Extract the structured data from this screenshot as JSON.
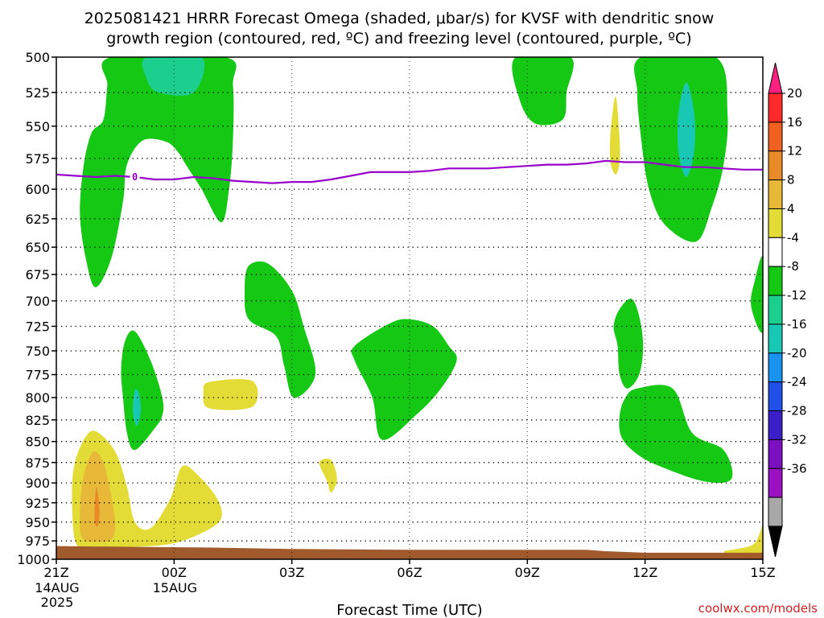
{
  "title_line1": "2025081421 HRRR Forecast Omega (shaded, μbar/s) for KVSF with dendritic snow",
  "title_line2": "growth region (contoured, red, ºC) and freezing level (contoured, purple, ºC)",
  "credit": "coolwx.com/models",
  "colors": {
    "green": "#14c814",
    "teal": "#1ccf8e",
    "cyan": "#18c8b4",
    "yellow": "#e4dc36",
    "gold": "#e8b838",
    "orange": "#e88a28",
    "terrain": "#a05a2c",
    "freezing": "#9900cc"
  },
  "chart_data": {
    "type": "time-height cross-section",
    "xlabel": "Forecast Time (UTC)",
    "x_ticks": [
      {
        "hour": 0,
        "label": "21Z",
        "sub1": "14AUG",
        "sub2": "2025"
      },
      {
        "hour": 3,
        "label": "00Z",
        "sub1": "15AUG",
        "sub2": ""
      },
      {
        "hour": 6,
        "label": "03Z",
        "sub1": "",
        "sub2": ""
      },
      {
        "hour": 9,
        "label": "06Z",
        "sub1": "",
        "sub2": ""
      },
      {
        "hour": 12,
        "label": "09Z",
        "sub1": "",
        "sub2": ""
      },
      {
        "hour": 15,
        "label": "12Z",
        "sub1": "",
        "sub2": ""
      },
      {
        "hour": 18,
        "label": "15Z",
        "sub1": "",
        "sub2": ""
      }
    ],
    "x_range_hours": [
      0,
      18
    ],
    "y_axis": "pressure (mb)",
    "y_ticks": [
      500,
      525,
      550,
      575,
      600,
      625,
      650,
      675,
      700,
      725,
      750,
      775,
      800,
      825,
      850,
      875,
      900,
      925,
      950,
      975,
      1000
    ],
    "y_range": [
      500,
      1000
    ],
    "y_scale": "log",
    "grid": true,
    "colorbar": {
      "units": "μbar/s",
      "levels": [
        "20",
        "16",
        "12",
        "8",
        "4",
        "-4",
        "-8",
        "-12",
        "-16",
        "-20",
        "-24",
        "-28",
        "-32",
        "-36"
      ],
      "bins": [
        {
          "color": "#ff2080"
        },
        {
          "color": "#ff2a2a"
        },
        {
          "color": "#f06020"
        },
        {
          "color": "#e88a28"
        },
        {
          "color": "#e8b838"
        },
        {
          "color": "#e4dc36"
        },
        {
          "color": "#ffffff"
        },
        {
          "color": "#14c814"
        },
        {
          "color": "#1ccf8e"
        },
        {
          "color": "#18c8b4"
        },
        {
          "color": "#1894f0"
        },
        {
          "color": "#2050e8"
        },
        {
          "color": "#3a1ec8"
        },
        {
          "color": "#7a10c0"
        },
        {
          "color": "#9b10c0"
        },
        {
          "color": "#a8a8a8"
        },
        {
          "color": "#000000"
        }
      ]
    },
    "freezing_level": {
      "label": "0",
      "points": [
        [
          0,
          588
        ],
        [
          0.5,
          589
        ],
        [
          1,
          590
        ],
        [
          1.5,
          589
        ],
        [
          2,
          590
        ],
        [
          2.5,
          592
        ],
        [
          3,
          592
        ],
        [
          3.5,
          590
        ],
        [
          4,
          591
        ],
        [
          4.5,
          593
        ],
        [
          5,
          594
        ],
        [
          5.5,
          595
        ],
        [
          6,
          594
        ],
        [
          6.5,
          594
        ],
        [
          7,
          592
        ],
        [
          7.5,
          589
        ],
        [
          8,
          586
        ],
        [
          8.5,
          586
        ],
        [
          9,
          586
        ],
        [
          9.5,
          585
        ],
        [
          10,
          583
        ],
        [
          10.5,
          583
        ],
        [
          11,
          583
        ],
        [
          11.5,
          582
        ],
        [
          12,
          581
        ],
        [
          12.5,
          580
        ],
        [
          13,
          580
        ],
        [
          13.5,
          579
        ],
        [
          14,
          577
        ],
        [
          14.5,
          578
        ],
        [
          15,
          578
        ],
        [
          15.5,
          580
        ],
        [
          16,
          582
        ],
        [
          16.5,
          582
        ],
        [
          17,
          583
        ],
        [
          17.5,
          584
        ],
        [
          18,
          584
        ]
      ]
    },
    "terrain_surface_mb": [
      [
        0,
        982
      ],
      [
        2,
        983
      ],
      [
        4,
        984
      ],
      [
        6,
        986
      ],
      [
        9,
        987
      ],
      [
        12,
        987
      ],
      [
        13.5,
        987
      ],
      [
        14,
        989
      ],
      [
        15,
        991
      ],
      [
        16,
        991
      ],
      [
        18,
        991
      ]
    ],
    "regions": [
      {
        "value": "-4 to -8",
        "color": "green",
        "points": [
          [
            1.4,
            500
          ],
          [
            4.3,
            500
          ],
          [
            4.5,
            520
          ],
          [
            4.5,
            560
          ],
          [
            4.4,
            600
          ],
          [
            4.2,
            628
          ],
          [
            3.7,
            600
          ],
          [
            3.3,
            580
          ],
          [
            3.1,
            570
          ],
          [
            2.8,
            562
          ],
          [
            2.2,
            561
          ],
          [
            1.8,
            580
          ],
          [
            1.7,
            610
          ],
          [
            1.4,
            660
          ],
          [
            1.0,
            687
          ],
          [
            0.75,
            660
          ],
          [
            0.6,
            620
          ],
          [
            0.7,
            580
          ],
          [
            0.9,
            555
          ],
          [
            1.2,
            545
          ],
          [
            1.3,
            520
          ]
        ]
      },
      {
        "value": "-8 to -12",
        "color": "teal",
        "points": [
          [
            2.3,
            500
          ],
          [
            3.7,
            500
          ],
          [
            3.5,
            525
          ],
          [
            2.6,
            525
          ],
          [
            2.3,
            515
          ]
        ]
      },
      {
        "value": "-4 to -8",
        "color": "green",
        "points": [
          [
            11.7,
            500
          ],
          [
            13.1,
            500
          ],
          [
            13.0,
            525
          ],
          [
            12.9,
            545
          ],
          [
            12.2,
            548
          ],
          [
            11.8,
            530
          ]
        ]
      },
      {
        "value": "-4 to -8",
        "color": "green",
        "points": [
          [
            14.9,
            500
          ],
          [
            16.8,
            500
          ],
          [
            17.1,
            540
          ],
          [
            17.0,
            580
          ],
          [
            16.7,
            615
          ],
          [
            16.3,
            645
          ],
          [
            15.5,
            630
          ],
          [
            15.1,
            600
          ],
          [
            14.9,
            560
          ],
          [
            14.8,
            525
          ]
        ]
      },
      {
        "value": "-8 to -12",
        "color": "cyan",
        "points": [
          [
            16.05,
            518
          ],
          [
            16.25,
            540
          ],
          [
            16.25,
            570
          ],
          [
            16.05,
            590
          ],
          [
            15.85,
            570
          ],
          [
            15.85,
            540
          ]
        ]
      },
      {
        "value": "4 to 8",
        "color": "yellow",
        "points": [
          [
            14.25,
            528
          ],
          [
            14.35,
            560
          ],
          [
            14.35,
            578
          ],
          [
            14.25,
            588
          ],
          [
            14.12,
            578
          ],
          [
            14.12,
            555
          ]
        ]
      },
      {
        "value": "-4 to -8",
        "color": "green",
        "points": [
          [
            4.9,
            667
          ],
          [
            5.4,
            665
          ],
          [
            6.0,
            690
          ],
          [
            6.3,
            725
          ],
          [
            6.6,
            775
          ],
          [
            6.05,
            800
          ],
          [
            5.8,
            765
          ],
          [
            5.6,
            735
          ],
          [
            4.9,
            718
          ],
          [
            4.8,
            690
          ]
        ]
      },
      {
        "value": "-4 to -8",
        "color": "green",
        "points": [
          [
            1.75,
            740
          ],
          [
            2.0,
            730
          ],
          [
            2.4,
            760
          ],
          [
            2.7,
            800
          ],
          [
            2.7,
            820
          ],
          [
            2.5,
            835
          ],
          [
            2.0,
            860
          ],
          [
            1.8,
            840
          ],
          [
            1.7,
            800
          ],
          [
            1.65,
            770
          ]
        ]
      },
      {
        "value": "-8 to -12",
        "color": "cyan",
        "points": [
          [
            2.0,
            792
          ],
          [
            2.1,
            795
          ],
          [
            2.15,
            815
          ],
          [
            2.05,
            832
          ],
          [
            1.95,
            815
          ]
        ]
      },
      {
        "value": "-4 to -8",
        "color": "green",
        "points": [
          [
            8.5,
            722
          ],
          [
            9.0,
            718
          ],
          [
            9.6,
            725
          ],
          [
            10.0,
            745
          ],
          [
            10.2,
            760
          ],
          [
            9.8,
            790
          ],
          [
            9.2,
            818
          ],
          [
            8.3,
            848
          ],
          [
            8.05,
            800
          ],
          [
            7.6,
            760
          ],
          [
            7.6,
            745
          ]
        ]
      },
      {
        "value": "-4 to -8",
        "color": "green",
        "points": [
          [
            14.35,
            708
          ],
          [
            14.65,
            698
          ],
          [
            14.85,
            715
          ],
          [
            14.95,
            745
          ],
          [
            14.85,
            775
          ],
          [
            14.55,
            790
          ],
          [
            14.35,
            775
          ],
          [
            14.3,
            745
          ],
          [
            14.2,
            725
          ]
        ]
      },
      {
        "value": "-4 to -8",
        "color": "green",
        "points": [
          [
            14.8,
            790
          ],
          [
            15.7,
            790
          ],
          [
            16.2,
            840
          ],
          [
            17.0,
            860
          ],
          [
            17.2,
            895
          ],
          [
            16.5,
            898
          ],
          [
            15.4,
            880
          ],
          [
            14.8,
            865
          ],
          [
            14.4,
            845
          ],
          [
            14.35,
            820
          ],
          [
            14.5,
            800
          ]
        ]
      },
      {
        "value": "-4 to -8",
        "color": "green",
        "points": [
          [
            18.0,
            660
          ],
          [
            17.8,
            680
          ],
          [
            17.7,
            705
          ],
          [
            18.0,
            730
          ]
        ]
      },
      {
        "value": "4 to 8",
        "color": "yellow",
        "points": [
          [
            3.9,
            783
          ],
          [
            5.0,
            782
          ],
          [
            5.0,
            810
          ],
          [
            3.9,
            812
          ],
          [
            3.75,
            795
          ]
        ]
      },
      {
        "value": "4 to 8",
        "color": "yellow",
        "points": [
          [
            6.7,
            875
          ],
          [
            7.0,
            872
          ],
          [
            7.15,
            895
          ],
          [
            7.0,
            912
          ],
          [
            6.9,
            898
          ]
        ]
      },
      {
        "value": "4 to 8",
        "color": "yellow",
        "points": [
          [
            1.0,
            838
          ],
          [
            1.5,
            862
          ],
          [
            1.8,
            905
          ],
          [
            2.0,
            950
          ],
          [
            2.4,
            958
          ],
          [
            2.9,
            920
          ],
          [
            3.2,
            880
          ],
          [
            3.6,
            890
          ],
          [
            4.1,
            920
          ],
          [
            4.2,
            945
          ],
          [
            3.8,
            962
          ],
          [
            3.0,
            978
          ],
          [
            2.0,
            983
          ],
          [
            0.9,
            983
          ],
          [
            0.5,
            978
          ],
          [
            0.4,
            925
          ],
          [
            0.45,
            880
          ],
          [
            0.7,
            848
          ]
        ]
      },
      {
        "value": "8 to 12",
        "color": "gold",
        "points": [
          [
            0.95,
            862
          ],
          [
            1.2,
            875
          ],
          [
            1.35,
            905
          ],
          [
            1.5,
            950
          ],
          [
            1.4,
            973
          ],
          [
            1.0,
            976
          ],
          [
            0.65,
            970
          ],
          [
            0.6,
            935
          ],
          [
            0.7,
            890
          ]
        ]
      },
      {
        "value": "12 to 16",
        "color": "orange",
        "points": [
          [
            1.03,
            905
          ],
          [
            1.1,
            935
          ],
          [
            1.06,
            955
          ],
          [
            0.98,
            950
          ],
          [
            0.98,
            925
          ]
        ]
      },
      {
        "value": "4 to 8",
        "color": "yellow",
        "points": [
          [
            18.0,
            955
          ],
          [
            17.75,
            980
          ],
          [
            17.0,
            990
          ],
          [
            18.0,
            995
          ]
        ]
      }
    ]
  }
}
